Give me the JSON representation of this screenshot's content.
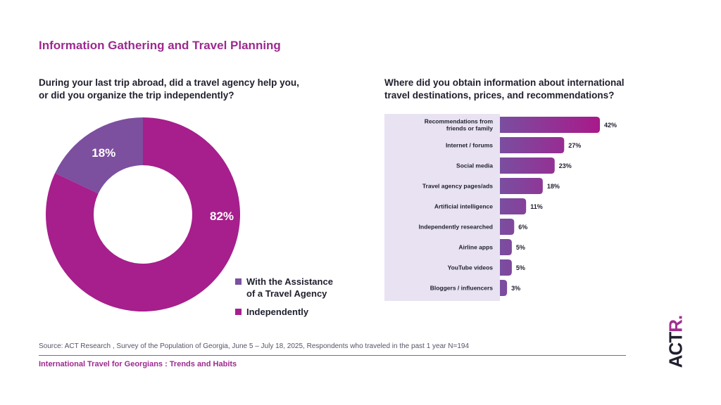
{
  "page": {
    "title": "Information Gathering and Travel Planning",
    "source": "Source: ACT Research , Survey of the Population of Georgia, June 5 – July 18, 2025, Respondents who traveled in the past 1 year N=194",
    "footer": "International Travel for Georgians : Trends and Habits",
    "logo_text": "ACT",
    "logo_accent": "R."
  },
  "colors": {
    "accent": "#9c2a8f",
    "magenta": "#a61f8c",
    "purple": "#7c4f9f",
    "panel": "#e8e2f2"
  },
  "chart_data": [
    {
      "type": "pie",
      "title": "During your last trip abroad, did a travel agency help you, or did you organize the trip independently?",
      "title_lines": [
        "During your last trip abroad, did a travel agency help you,",
        "or did you organize the trip independently?"
      ],
      "categories": [
        "With the Assistance of a Travel Agency",
        "Independently"
      ],
      "values": [
        18,
        82
      ],
      "labels": [
        "18%",
        "82%"
      ],
      "legend": [
        {
          "lines": [
            "With the Assistance",
            "of a Travel Agency"
          ],
          "color": "#7c4f9f"
        },
        {
          "lines": [
            "Independently"
          ],
          "color": "#a61f8c"
        }
      ],
      "donut": true,
      "legend_position": "bottom-right"
    },
    {
      "type": "bar",
      "orientation": "horizontal",
      "title": "Where did you obtain information about international travel destinations, prices, and recommendations?",
      "title_lines": [
        "Where did you obtain information about international",
        "travel destinations, prices, and recommendations?"
      ],
      "categories": [
        [
          "Recommendations from",
          "friends or family"
        ],
        [
          "Internet / forums"
        ],
        [
          "Social media"
        ],
        [
          "Travel agency pages/ads"
        ],
        [
          "Artificial intelligence"
        ],
        [
          "Independently researched"
        ],
        [
          "Airline apps"
        ],
        [
          "YouTube videos"
        ],
        [
          "Bloggers / influencers"
        ]
      ],
      "values": [
        42,
        27,
        23,
        18,
        11,
        6,
        5,
        5,
        3
      ],
      "labels": [
        "42%",
        "27%",
        "23%",
        "18%",
        "11%",
        "6%",
        "5%",
        "5%",
        "3%"
      ],
      "xlim": [
        0,
        42
      ],
      "grid": false
    }
  ]
}
